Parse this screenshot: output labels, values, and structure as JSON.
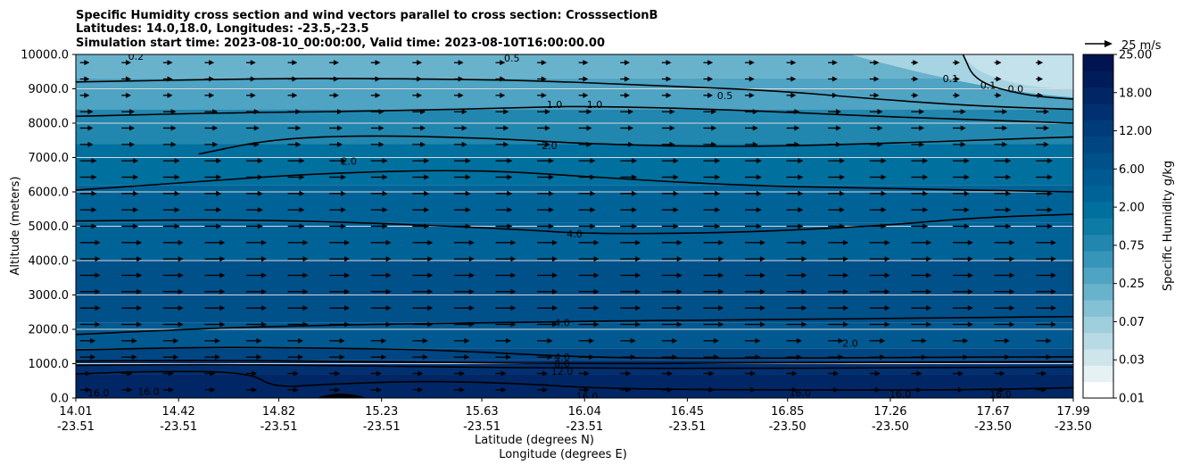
{
  "chart_data": {
    "type": "heatmap",
    "title_lines": [
      "Specific Humidity cross section and wind vectors parallel to cross section: CrosssectionB",
      "Latitudes: 14.0,18.0, Longitudes: -23.5,-23.5",
      "Simulation start time: 2023-08-10_00:00:00, Valid time: 2023-08-10T16:00:00.00"
    ],
    "ylabel": "Altitude (meters)",
    "xlabel_lat": "Latitude (degrees N)",
    "xlabel_lon": "Longitude (degrees E)",
    "ylim": [
      0,
      10000
    ],
    "yticks": [
      "0.0",
      "1000.0",
      "2000.0",
      "3000.0",
      "4000.0",
      "5000.0",
      "6000.0",
      "7000.0",
      "8000.0",
      "9000.0",
      "10000.0"
    ],
    "xlim": [
      14.01,
      17.99
    ],
    "xticks": [
      {
        "lat": "14.01",
        "lon": "-23.51"
      },
      {
        "lat": "14.42",
        "lon": "-23.51"
      },
      {
        "lat": "14.82",
        "lon": "-23.51"
      },
      {
        "lat": "15.23",
        "lon": "-23.51"
      },
      {
        "lat": "15.63",
        "lon": "-23.51"
      },
      {
        "lat": "16.04",
        "lon": "-23.51"
      },
      {
        "lat": "16.45",
        "lon": "-23.51"
      },
      {
        "lat": "16.85",
        "lon": "-23.50"
      },
      {
        "lat": "17.26",
        "lon": "-23.50"
      },
      {
        "lat": "17.67",
        "lon": "-23.50"
      },
      {
        "lat": "17.99",
        "lon": "-23.50"
      }
    ],
    "colorbar": {
      "label": "Specific Humidity g/kg",
      "tick_labels": [
        "0.01",
        "0.03",
        "0.07",
        "0.25",
        "0.75",
        "2.00",
        "6.00",
        "12.00",
        "18.00",
        "25.00"
      ],
      "colors": [
        "#ffffff",
        "#e6f1f4",
        "#cfe5ec",
        "#b7dae5",
        "#9fcedd",
        "#85c1d5",
        "#69b2cc",
        "#4fa3c3",
        "#3795b9",
        "#2287ae",
        "#0e7aa6",
        "#00709f",
        "#006398",
        "#005a91",
        "#00508a",
        "#004682",
        "#003b7a",
        "#003070",
        "#002665",
        "#001c59",
        "#001452"
      ]
    },
    "quiver_key": {
      "label": "25 m/s",
      "speed": 25
    },
    "wind": {
      "direction": "parallel to cross section, positive (northward)",
      "speed_range_ms": [
        0,
        25
      ]
    },
    "humidity_bands": [
      {
        "z_bottom": 0,
        "z_top": 700,
        "q": 16.0
      },
      {
        "z_bottom": 700,
        "z_top": 1100,
        "q": 12.0
      },
      {
        "z_bottom": 1100,
        "z_top": 1450,
        "q": 8.0
      },
      {
        "z_bottom": 1450,
        "z_top": 2200,
        "q": 5.0
      },
      {
        "z_bottom": 2200,
        "z_top": 4000,
        "q": 6.0
      },
      {
        "z_bottom": 4000,
        "z_top": 5100,
        "q": 4.0
      },
      {
        "z_bottom": 5100,
        "z_top": 6200,
        "q": 3.0
      },
      {
        "z_bottom": 6200,
        "z_top": 7400,
        "q": 2.0
      },
      {
        "z_bottom": 7400,
        "z_top": 8400,
        "q": 1.3
      },
      {
        "z_bottom": 8400,
        "z_top": 9300,
        "q": 0.7
      },
      {
        "z_bottom": 9300,
        "z_top": 10000,
        "q": 0.4
      }
    ],
    "contours": [
      {
        "level": "16.0",
        "points": [
          [
            14.01,
            700
          ],
          [
            14.3,
            780
          ],
          [
            14.7,
            760
          ],
          [
            14.8,
            300
          ],
          [
            15.0,
            400
          ],
          [
            15.4,
            500
          ],
          [
            15.8,
            420
          ],
          [
            16.04,
            300
          ],
          [
            16.4,
            250
          ],
          [
            17.0,
            230
          ],
          [
            17.6,
            240
          ],
          [
            17.99,
            300
          ]
        ]
      },
      {
        "level": "12.0",
        "points": [
          [
            14.01,
            950
          ],
          [
            14.5,
            980
          ],
          [
            15.0,
            950
          ],
          [
            15.5,
            900
          ],
          [
            16.0,
            870
          ],
          [
            16.6,
            860
          ],
          [
            17.3,
            880
          ],
          [
            17.99,
            900
          ]
        ]
      },
      {
        "level": "8.0",
        "points": [
          [
            14.01,
            1080
          ],
          [
            14.5,
            1100
          ],
          [
            15.0,
            1080
          ],
          [
            15.6,
            1020
          ],
          [
            16.0,
            1000
          ],
          [
            16.6,
            1010
          ],
          [
            17.3,
            1040
          ],
          [
            17.99,
            1060
          ]
        ]
      },
      {
        "level": "4.0",
        "points": [
          [
            14.01,
            1400
          ],
          [
            14.5,
            1480
          ],
          [
            15.0,
            1460
          ],
          [
            15.5,
            1390
          ],
          [
            16.04,
            1180
          ],
          [
            16.6,
            1150
          ],
          [
            17.2,
            1180
          ],
          [
            17.99,
            1200
          ]
        ]
      },
      {
        "level": "4.0",
        "points": [
          [
            14.01,
            1850
          ],
          [
            14.6,
            2050
          ],
          [
            15.2,
            2150
          ],
          [
            15.8,
            2200
          ],
          [
            16.2,
            2250
          ],
          [
            16.8,
            2280
          ],
          [
            17.4,
            2330
          ],
          [
            17.99,
            2370
          ]
        ]
      },
      {
        "level": "4.0",
        "points": [
          [
            14.01,
            5150
          ],
          [
            14.6,
            5200
          ],
          [
            15.2,
            5100
          ],
          [
            15.8,
            4900
          ],
          [
            16.04,
            4780
          ],
          [
            16.6,
            4800
          ],
          [
            17.2,
            5000
          ],
          [
            17.6,
            5250
          ],
          [
            17.99,
            5350
          ]
        ]
      },
      {
        "level": "2.0",
        "points": [
          [
            14.01,
            6050
          ],
          [
            14.5,
            6300
          ],
          [
            15.0,
            6550
          ],
          [
            15.6,
            6650
          ],
          [
            16.04,
            6450
          ],
          [
            16.6,
            6200
          ],
          [
            17.2,
            6100
          ],
          [
            17.99,
            6000
          ]
        ]
      },
      {
        "level": "2.0",
        "points": [
          [
            14.5,
            7100
          ],
          [
            14.8,
            7550
          ],
          [
            15.2,
            7650
          ],
          [
            15.7,
            7550
          ],
          [
            16.04,
            7400
          ],
          [
            16.6,
            7300
          ],
          [
            17.2,
            7400
          ],
          [
            17.99,
            7600
          ]
        ]
      },
      {
        "level": "1.0",
        "points": [
          [
            14.01,
            8200
          ],
          [
            14.6,
            8300
          ],
          [
            15.2,
            8350
          ],
          [
            15.8,
            8450
          ],
          [
            16.04,
            8500
          ],
          [
            16.6,
            8400
          ],
          [
            17.2,
            8200
          ],
          [
            17.6,
            8100
          ],
          [
            17.99,
            8000
          ]
        ]
      },
      {
        "level": "0.5",
        "points": [
          [
            14.01,
            9200
          ],
          [
            14.8,
            9300
          ],
          [
            15.2,
            9300
          ],
          [
            15.8,
            9250
          ],
          [
            16.3,
            9100
          ],
          [
            16.8,
            8950
          ],
          [
            17.2,
            8700
          ],
          [
            17.6,
            8500
          ],
          [
            17.99,
            8400
          ]
        ]
      },
      {
        "level": "0.1",
        "points": [
          [
            17.55,
            10000
          ],
          [
            17.6,
            9200
          ],
          [
            17.8,
            8800
          ],
          [
            17.99,
            8700
          ]
        ]
      }
    ],
    "contour_labels": [
      {
        "text": "0.5",
        "x": 15.75,
        "z": 9900
      },
      {
        "text": "0.5",
        "x": 16.6,
        "z": 8800
      },
      {
        "text": "1.0",
        "x": 15.92,
        "z": 8550
      },
      {
        "text": "1.0",
        "x": 16.08,
        "z": 8550
      },
      {
        "text": "2.0",
        "x": 15.9,
        "z": 7350
      },
      {
        "text": "2.0",
        "x": 15.1,
        "z": 6900
      },
      {
        "text": "4.0",
        "x": 16.0,
        "z": 4780
      },
      {
        "text": "4.0",
        "x": 15.95,
        "z": 2200
      },
      {
        "text": "4.0",
        "x": 15.95,
        "z": 1200
      },
      {
        "text": "8.0",
        "x": 15.95,
        "z": 1000
      },
      {
        "text": "12.0",
        "x": 15.95,
        "z": 780
      },
      {
        "text": "16.0",
        "x": 16.05,
        "z": 50
      },
      {
        "text": "16.0",
        "x": 16.9,
        "z": 150
      },
      {
        "text": "16.0",
        "x": 14.1,
        "z": 150
      },
      {
        "text": "16.0",
        "x": 14.3,
        "z": 200
      },
      {
        "text": "16.0",
        "x": 17.3,
        "z": 120
      },
      {
        "text": "16.0",
        "x": 17.7,
        "z": 120
      },
      {
        "text": "2.0",
        "x": 17.1,
        "z": 1600
      },
      {
        "text": "0.1",
        "x": 17.5,
        "z": 9300
      },
      {
        "text": "0.1",
        "x": 17.65,
        "z": 9100
      },
      {
        "text": "0.0",
        "x": 17.76,
        "z": 9000
      },
      {
        "text": "0.2",
        "x": 14.25,
        "z": 9950
      }
    ]
  }
}
